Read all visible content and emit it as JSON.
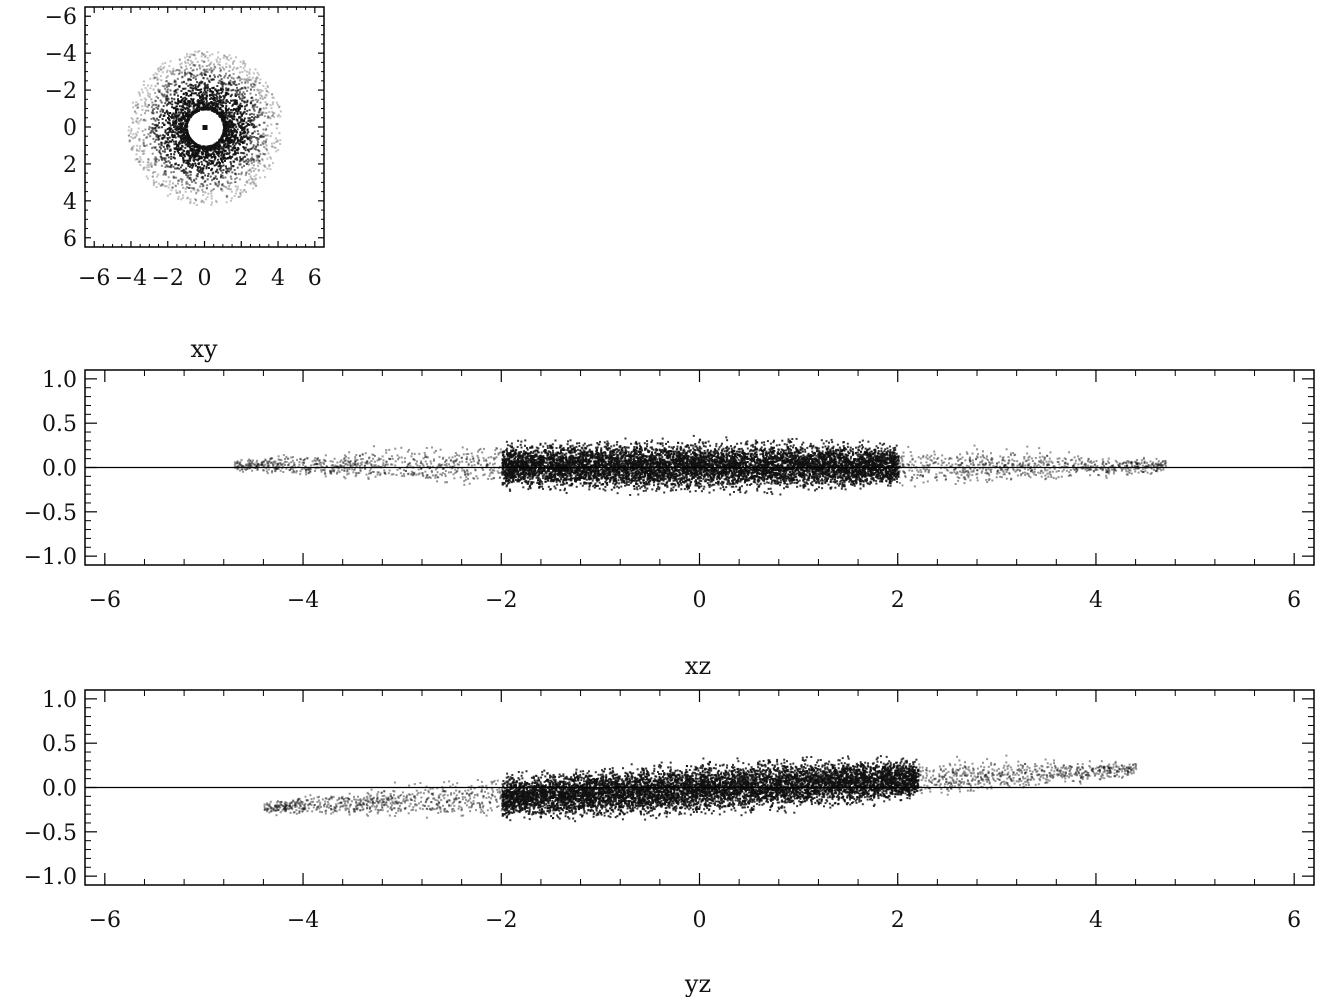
{
  "chart_data": [
    {
      "type": "scatter",
      "title": "",
      "xlabel": "xy",
      "ylabel": "",
      "xlim": [
        -6.5,
        6.5
      ],
      "ylim": [
        -6.5,
        6.5
      ],
      "x_ticks": [
        -6,
        -4,
        -2,
        0,
        2,
        4,
        6
      ],
      "y_ticks": [
        -6,
        -4,
        -2,
        0,
        2,
        4,
        6
      ],
      "x_tick_labels": [
        "−6",
        "−4",
        "−2",
        "0",
        "2",
        "4",
        "6"
      ],
      "y_tick_labels": [
        "6",
        "4",
        "2",
        "0",
        "−2",
        "−4",
        "−6"
      ],
      "grid": false,
      "density": {
        "shape": "ring",
        "hole_radius": 1.0,
        "core_radius": 2.0,
        "outer_radius": 4.2,
        "center_point": [
          0,
          0
        ]
      },
      "color": "#111111"
    },
    {
      "type": "scatter",
      "title": "",
      "xlabel": "xz",
      "ylabel": "",
      "xlim": [
        -6.2,
        6.2
      ],
      "ylim": [
        -1.1,
        1.1
      ],
      "x_ticks": [
        -6,
        -4,
        -2,
        0,
        2,
        4,
        6
      ],
      "y_ticks": [
        1.0,
        0.5,
        0.0,
        -0.5,
        -1.0
      ],
      "x_tick_labels": [
        "−6",
        "−4",
        "−2",
        "0",
        "2",
        "4",
        "6"
      ],
      "y_tick_labels": [
        "1.0",
        "0.5",
        "0.0",
        "−0.5",
        "−1.0"
      ],
      "grid": false,
      "zero_line": 0.0,
      "density": {
        "shape": "disk",
        "x_extent": [
          -4.7,
          4.7
        ],
        "core_extent": [
          -2.0,
          2.0
        ],
        "half_thickness": 0.35,
        "tilt": 0.0,
        "offset": 0.03
      },
      "color": "#111111"
    },
    {
      "type": "scatter",
      "title": "",
      "xlabel": "yz",
      "ylabel": "",
      "xlim": [
        -6.2,
        6.2
      ],
      "ylim": [
        -1.1,
        1.1
      ],
      "x_ticks": [
        -6,
        -4,
        -2,
        0,
        2,
        4,
        6
      ],
      "y_ticks": [
        1.0,
        0.5,
        0.0,
        -0.5,
        -1.0
      ],
      "x_tick_labels": [
        "−6",
        "−4",
        "−2",
        "0",
        "2",
        "4",
        "6"
      ],
      "y_tick_labels": [
        "1.0",
        "0.5",
        "0.0",
        "−0.5",
        "−1.0"
      ],
      "grid": false,
      "zero_line": 0.0,
      "density": {
        "shape": "disk",
        "x_extent": [
          -4.4,
          4.4
        ],
        "core_extent": [
          -2.0,
          2.2
        ],
        "half_thickness": 0.35,
        "tilt": 0.05,
        "offset": 0.0
      },
      "color": "#111111"
    }
  ]
}
